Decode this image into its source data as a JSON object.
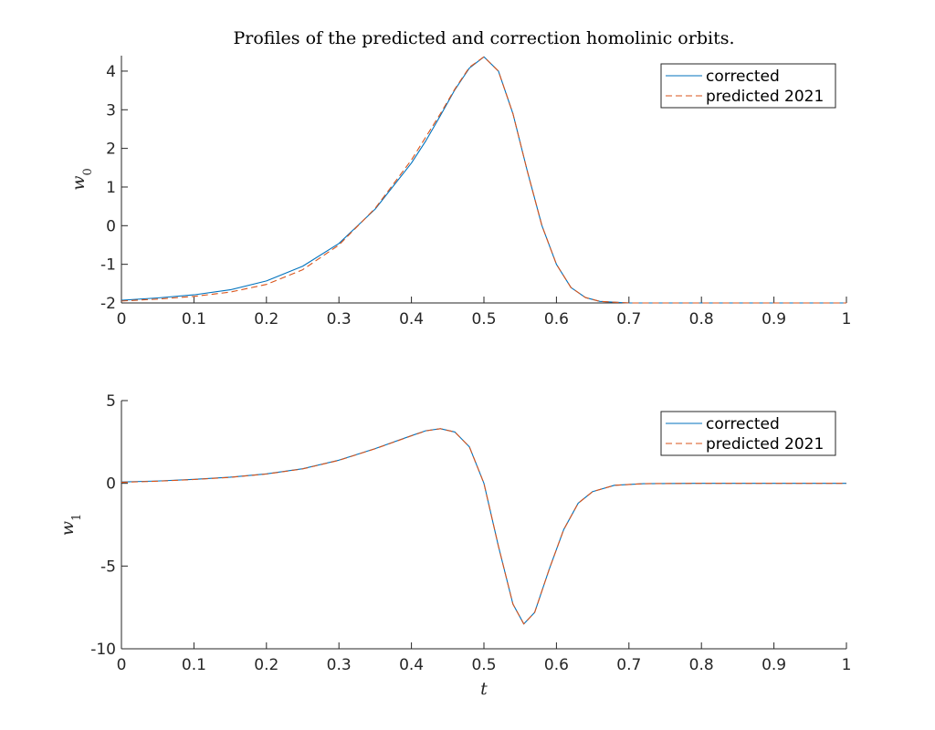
{
  "chart_data": [
    {
      "type": "line",
      "title": "Profiles of the predicted and correction homolinic orbits.",
      "xlabel": "",
      "ylabel": "w",
      "ylabel_subscript": "0",
      "xlim": [
        0,
        1
      ],
      "ylim": [
        -2,
        4.4
      ],
      "x_ticks": [
        0,
        0.1,
        0.2,
        0.3,
        0.4,
        0.5,
        0.6,
        0.7,
        0.8,
        0.9,
        1
      ],
      "x_tick_labels": [
        "0",
        "0.1",
        "0.2",
        "0.3",
        "0.4",
        "0.5",
        "0.6",
        "0.7",
        "0.8",
        "0.9",
        "1"
      ],
      "y_ticks": [
        -2,
        -1,
        0,
        1,
        2,
        3,
        4
      ],
      "y_tick_labels": [
        "-2",
        "-1",
        "0",
        "1",
        "2",
        "3",
        "4"
      ],
      "grid": false,
      "legend_position": "top-right",
      "x": [
        0,
        0.05,
        0.1,
        0.15,
        0.2,
        0.25,
        0.3,
        0.35,
        0.4,
        0.42,
        0.44,
        0.46,
        0.48,
        0.5,
        0.52,
        0.54,
        0.56,
        0.58,
        0.6,
        0.62,
        0.64,
        0.66,
        0.7,
        0.75,
        0.8,
        0.9,
        1
      ],
      "series": [
        {
          "name": "corrected",
          "color": "#0072BD",
          "dash": "solid",
          "values": [
            -1.93,
            -1.87,
            -1.79,
            -1.66,
            -1.43,
            -1.05,
            -0.46,
            0.43,
            1.62,
            2.2,
            2.85,
            3.52,
            4.08,
            4.37,
            4.0,
            2.9,
            1.4,
            0.0,
            -1.0,
            -1.6,
            -1.86,
            -1.96,
            -2.0,
            -2.0,
            -2.0,
            -2.0,
            -2.0
          ]
        },
        {
          "name": "predicted 2021",
          "color": "#D95319",
          "dash": "dashed",
          "values": [
            -1.95,
            -1.9,
            -1.83,
            -1.72,
            -1.52,
            -1.14,
            -0.5,
            0.45,
            1.7,
            2.3,
            2.9,
            3.54,
            4.1,
            4.37,
            4.0,
            2.9,
            1.4,
            0.0,
            -1.0,
            -1.6,
            -1.86,
            -1.96,
            -2.0,
            -2.0,
            -2.0,
            -2.0,
            -2.0
          ]
        }
      ]
    },
    {
      "type": "line",
      "title": "",
      "xlabel": "t",
      "ylabel": "w",
      "ylabel_subscript": "1",
      "xlim": [
        0,
        1
      ],
      "ylim": [
        -10,
        5
      ],
      "x_ticks": [
        0,
        0.1,
        0.2,
        0.3,
        0.4,
        0.5,
        0.6,
        0.7,
        0.8,
        0.9,
        1
      ],
      "x_tick_labels": [
        "0",
        "0.1",
        "0.2",
        "0.3",
        "0.4",
        "0.5",
        "0.6",
        "0.7",
        "0.8",
        "0.9",
        "1"
      ],
      "y_ticks": [
        -10,
        -5,
        0,
        5
      ],
      "y_tick_labels": [
        "-10",
        "-5",
        "0",
        "5"
      ],
      "grid": false,
      "legend_position": "top-right",
      "x": [
        0,
        0.05,
        0.1,
        0.15,
        0.2,
        0.25,
        0.3,
        0.35,
        0.4,
        0.42,
        0.44,
        0.46,
        0.48,
        0.5,
        0.52,
        0.54,
        0.555,
        0.57,
        0.59,
        0.61,
        0.63,
        0.65,
        0.68,
        0.72,
        0.8,
        0.9,
        1
      ],
      "series": [
        {
          "name": "corrected",
          "color": "#0072BD",
          "dash": "solid",
          "values": [
            0.08,
            0.14,
            0.24,
            0.37,
            0.57,
            0.88,
            1.4,
            2.1,
            2.88,
            3.18,
            3.3,
            3.1,
            2.2,
            0.0,
            -3.8,
            -7.3,
            -8.5,
            -7.8,
            -5.2,
            -2.8,
            -1.2,
            -0.5,
            -0.12,
            -0.02,
            0.0,
            0.0,
            0.0
          ]
        },
        {
          "name": "predicted 2021",
          "color": "#D95319",
          "dash": "dashed",
          "values": [
            0.06,
            0.13,
            0.23,
            0.36,
            0.56,
            0.87,
            1.39,
            2.09,
            2.87,
            3.17,
            3.3,
            3.1,
            2.2,
            0.0,
            -3.8,
            -7.3,
            -8.5,
            -7.8,
            -5.2,
            -2.8,
            -1.2,
            -0.5,
            -0.12,
            -0.02,
            0.0,
            0.0,
            0.0
          ]
        }
      ]
    }
  ]
}
